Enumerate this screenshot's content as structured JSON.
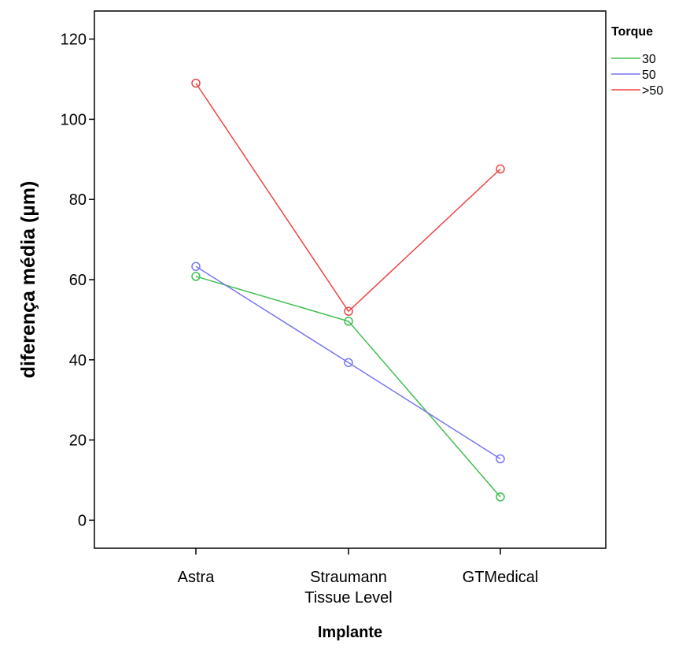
{
  "chart_data": {
    "type": "line",
    "xlabel": "Implante",
    "ylabel": "diferença média (µm)",
    "categories": [
      [
        "Astra"
      ],
      [
        "Straumann",
        "Tissue Level"
      ],
      [
        "GTMedical"
      ]
    ],
    "ylim": [
      -7,
      127
    ],
    "yticks": [
      0,
      20,
      40,
      60,
      80,
      100,
      120
    ],
    "grid": false,
    "legend": {
      "title": "Torque",
      "position": "top-right (outside plot)"
    },
    "series": [
      {
        "name": "30",
        "color": "#3fbf4f",
        "values": [
          60.8,
          49.6,
          5.8
        ]
      },
      {
        "name": "50",
        "color": "#7777ee",
        "values": [
          63.3,
          39.3,
          15.3
        ]
      },
      {
        "name": ">50",
        "color": "#ee4444",
        "values": [
          109.0,
          52.1,
          87.6
        ]
      }
    ]
  }
}
